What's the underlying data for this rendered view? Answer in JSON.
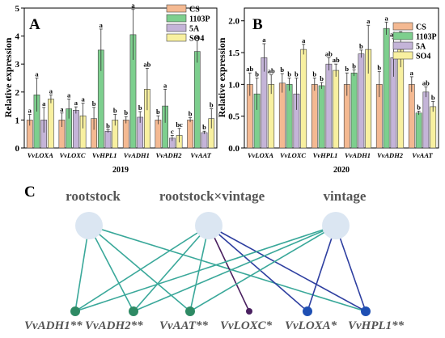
{
  "chart_data": [
    {
      "type": "bar",
      "panel": "A",
      "xlabel": "2019",
      "ylabel": "Relative expression",
      "ylim": [
        0,
        5
      ],
      "yticks": [
        0,
        1,
        2,
        3,
        4,
        5
      ],
      "legend_position": "top-right",
      "categories": [
        "VvLOXA",
        "VvLOXC",
        "VvHPL1",
        "VvADH1",
        "VvADH2",
        "VvAAT"
      ],
      "series": [
        {
          "name": "CS",
          "color": "#f4b992",
          "values": [
            1.0,
            1.0,
            1.05,
            1.0,
            1.0,
            1.0
          ],
          "errors": [
            0.2,
            0.25,
            0.4,
            0.12,
            0.15,
            0.08
          ],
          "labels": [
            "a",
            "a",
            "b",
            "b",
            "b",
            "b"
          ]
        },
        {
          "name": "1103P",
          "color": "#7dcf8e",
          "values": [
            1.9,
            1.4,
            3.5,
            4.05,
            1.5,
            3.45
          ],
          "errors": [
            0.6,
            0.35,
            0.75,
            0.9,
            0.6,
            0.4
          ],
          "labels": [
            "a",
            "a",
            "a",
            "a",
            "a",
            "a"
          ]
        },
        {
          "name": "5A",
          "color": "#c4b4d8",
          "values": [
            1.0,
            1.35,
            0.6,
            1.1,
            0.35,
            0.55
          ],
          "errors": [
            0.45,
            0.12,
            0.05,
            0.2,
            0.1,
            0.05
          ],
          "labels": [
            "a",
            "a",
            "b",
            "b",
            "c",
            "b"
          ]
        },
        {
          "name": "SO4",
          "color": "#f8f0a0",
          "values": [
            1.75,
            1.15,
            1.0,
            2.1,
            0.45,
            1.05
          ],
          "errors": [
            0.15,
            0.45,
            0.2,
            0.75,
            0.25,
            0.35
          ],
          "labels": [
            "a",
            "a",
            "b",
            "ab",
            "bc",
            "b"
          ]
        }
      ]
    },
    {
      "type": "bar",
      "panel": "B",
      "xlabel": "2020",
      "ylabel": "Relative expression",
      "ylim": [
        0,
        2.2
      ],
      "yticks": [
        0.0,
        0.5,
        1.0,
        1.5,
        2.0
      ],
      "legend_position": "top-right",
      "categories": [
        "VvLOXA",
        "VvLOXC",
        "VvHPL1",
        "VvADH1",
        "VvADH2",
        "VvAAT"
      ],
      "series": [
        {
          "name": "CS",
          "color": "#f4b992",
          "values": [
            1.0,
            1.02,
            1.0,
            1.0,
            1.0,
            1.0
          ],
          "errors": [
            0.18,
            0.15,
            0.1,
            0.18,
            0.2,
            0.12
          ],
          "labels": [
            "ab",
            "b",
            "b",
            "b",
            "b",
            "a"
          ]
        },
        {
          "name": "1103P",
          "color": "#7dcf8e",
          "values": [
            0.85,
            1.0,
            0.98,
            1.18,
            1.88,
            0.55
          ],
          "errors": [
            0.25,
            0.1,
            0.05,
            0.05,
            0.1,
            0.03
          ],
          "labels": [
            "b",
            "b",
            "b",
            "b",
            "a",
            "b"
          ]
        },
        {
          "name": "5A",
          "color": "#c4b4d8",
          "values": [
            1.42,
            0.85,
            1.32,
            1.48,
            1.42,
            0.88
          ],
          "errors": [
            0.22,
            0.25,
            0.1,
            0.06,
            0.3,
            0.08
          ],
          "labels": [
            "a",
            "b",
            "ab",
            "b",
            "ab",
            "ab"
          ]
        },
        {
          "name": "SO4",
          "color": "#f8f0a0",
          "values": [
            1.0,
            1.55,
            1.22,
            1.55,
            1.55,
            0.65
          ],
          "errors": [
            0.15,
            0.08,
            0.1,
            0.38,
            0.28,
            0.08
          ],
          "labels": [
            "ab",
            "a",
            "ab",
            "a",
            "ab",
            "b"
          ]
        }
      ]
    }
  ],
  "network": {
    "panel": "C",
    "factors": [
      "rootstock",
      "rootstock×vintage",
      "vintage"
    ],
    "genes": [
      {
        "label": "VvADH1**",
        "color": "#2e8a64"
      },
      {
        "label": "VvADH2**",
        "color": "#2e8a64"
      },
      {
        "label": "VvAAT**",
        "color": "#2e8a64"
      },
      {
        "label": "VvLOXC*",
        "color": "#4a2060"
      },
      {
        "label": "VvLOXA*",
        "color": "#1e4fb3"
      },
      {
        "label": "VvHPL1**",
        "color": "#1e4fb3"
      }
    ],
    "edge_colors": {
      "teal": "#3aa89a",
      "purple": "#4a2060",
      "blue": "#2e3fa0"
    },
    "edges": [
      [
        0,
        0,
        "teal"
      ],
      [
        0,
        1,
        "teal"
      ],
      [
        0,
        2,
        "teal"
      ],
      [
        0,
        5,
        "teal"
      ],
      [
        1,
        0,
        "teal"
      ],
      [
        1,
        1,
        "teal"
      ],
      [
        1,
        2,
        "teal"
      ],
      [
        1,
        3,
        "purple"
      ],
      [
        1,
        4,
        "blue"
      ],
      [
        1,
        5,
        "blue"
      ],
      [
        2,
        0,
        "teal"
      ],
      [
        2,
        1,
        "teal"
      ],
      [
        2,
        2,
        "teal"
      ],
      [
        2,
        4,
        "blue"
      ],
      [
        2,
        5,
        "blue"
      ]
    ]
  }
}
